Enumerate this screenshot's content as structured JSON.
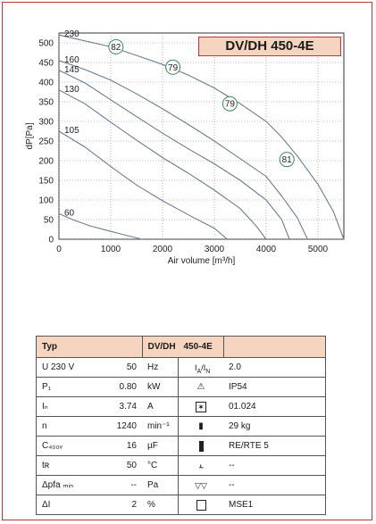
{
  "model_title": "DV/DH 450-4E",
  "chart_data": {
    "type": "line",
    "xlabel": "Air volume [m³/h]",
    "ylabel": "dP[Pa]",
    "xlim": [
      0,
      5500
    ],
    "ylim": [
      0,
      525
    ],
    "xticks": [
      0,
      1000,
      2000,
      3000,
      4000,
      5000
    ],
    "yticks": [
      0,
      50,
      100,
      150,
      200,
      250,
      300,
      350,
      400,
      450,
      500
    ],
    "grid": true,
    "series": [
      {
        "name": "230",
        "points": [
          [
            0,
            520
          ],
          [
            500,
            505
          ],
          [
            1000,
            490
          ],
          [
            1500,
            468
          ],
          [
            2000,
            445
          ],
          [
            2500,
            418
          ],
          [
            3000,
            385
          ],
          [
            3500,
            345
          ],
          [
            4000,
            300
          ],
          [
            4300,
            260
          ],
          [
            4600,
            212
          ],
          [
            5000,
            140
          ],
          [
            5300,
            70
          ],
          [
            5500,
            0
          ]
        ]
      },
      {
        "name": "160",
        "points": [
          [
            0,
            455
          ],
          [
            500,
            432
          ],
          [
            1000,
            405
          ],
          [
            1500,
            370
          ],
          [
            2000,
            332
          ],
          [
            2500,
            292
          ],
          [
            3000,
            250
          ],
          [
            3500,
            205
          ],
          [
            4000,
            160
          ],
          [
            4300,
            110
          ],
          [
            4600,
            55
          ],
          [
            4800,
            0
          ]
        ]
      },
      {
        "name": "145",
        "points": [
          [
            0,
            430
          ],
          [
            500,
            398
          ],
          [
            1000,
            355
          ],
          [
            1500,
            312
          ],
          [
            2000,
            270
          ],
          [
            2500,
            230
          ],
          [
            3000,
            192
          ],
          [
            3500,
            150
          ],
          [
            4000,
            100
          ],
          [
            4300,
            50
          ],
          [
            4450,
            0
          ]
        ]
      },
      {
        "name": "130",
        "points": [
          [
            0,
            380
          ],
          [
            500,
            345
          ],
          [
            1000,
            298
          ],
          [
            1500,
            252
          ],
          [
            2000,
            208
          ],
          [
            2500,
            168
          ],
          [
            3000,
            125
          ],
          [
            3500,
            78
          ],
          [
            3800,
            35
          ],
          [
            4000,
            0
          ]
        ]
      },
      {
        "name": "105",
        "points": [
          [
            0,
            275
          ],
          [
            500,
            235
          ],
          [
            1000,
            185
          ],
          [
            1500,
            138
          ],
          [
            2000,
            98
          ],
          [
            2500,
            62
          ],
          [
            3000,
            28
          ],
          [
            3250,
            0
          ]
        ]
      },
      {
        "name": "60",
        "points": [
          [
            0,
            65
          ],
          [
            300,
            48
          ],
          [
            600,
            34
          ],
          [
            1000,
            20
          ],
          [
            1300,
            10
          ],
          [
            1600,
            0
          ]
        ]
      }
    ],
    "efficiency_markers": [
      {
        "label": "82",
        "x": 1100,
        "y": 490
      },
      {
        "label": "79",
        "x": 2200,
        "y": 438
      },
      {
        "label": "79",
        "x": 3300,
        "y": 345
      },
      {
        "label": "81",
        "x": 4400,
        "y": 203
      }
    ]
  },
  "specs": {
    "header": {
      "typ": "Typ",
      "model_a": "DV/DH",
      "model_b": "450-4E"
    },
    "left": [
      {
        "symbol": "U   230   V",
        "value": "50",
        "unit": "Hz"
      },
      {
        "symbol": "P₁",
        "value": "0.80",
        "unit": "kW"
      },
      {
        "symbol": "Iₙ",
        "value": "3.74",
        "unit": "A"
      },
      {
        "symbol": "n",
        "value": "1240",
        "unit": "min⁻¹"
      },
      {
        "symbol": "C₄₀₀ᵥ",
        "value": "16",
        "unit": "µF"
      },
      {
        "symbol": "tʀ",
        "value": "50",
        "unit": "°C"
      },
      {
        "symbol": "Δpfa ₘᵢₙ",
        "value": "--",
        "unit": "Pa"
      },
      {
        "symbol": "ΔI",
        "value": "2",
        "unit": "%"
      }
    ],
    "right": [
      {
        "icon": "current-ratio-icon",
        "symbol": "Iₐ / Iₙ",
        "value": "2.0"
      },
      {
        "icon": "warning-triangle-icon",
        "symbol": "⚠",
        "value": "IP54"
      },
      {
        "icon": "star-box-icon",
        "symbol": "✶",
        "value": "01.024"
      },
      {
        "icon": "weight-icon",
        "symbol": "▮",
        "value": "29 kg"
      },
      {
        "icon": "controller-icon",
        "symbol": "▐",
        "value": "RE/RTE 5"
      },
      {
        "icon": "thermostat-icon",
        "symbol": "⫠",
        "value": "--"
      },
      {
        "icon": "network-icon",
        "symbol": "▽",
        "value": "--"
      },
      {
        "icon": "switch-box-icon",
        "symbol": "□",
        "value": "MSE1"
      }
    ]
  }
}
